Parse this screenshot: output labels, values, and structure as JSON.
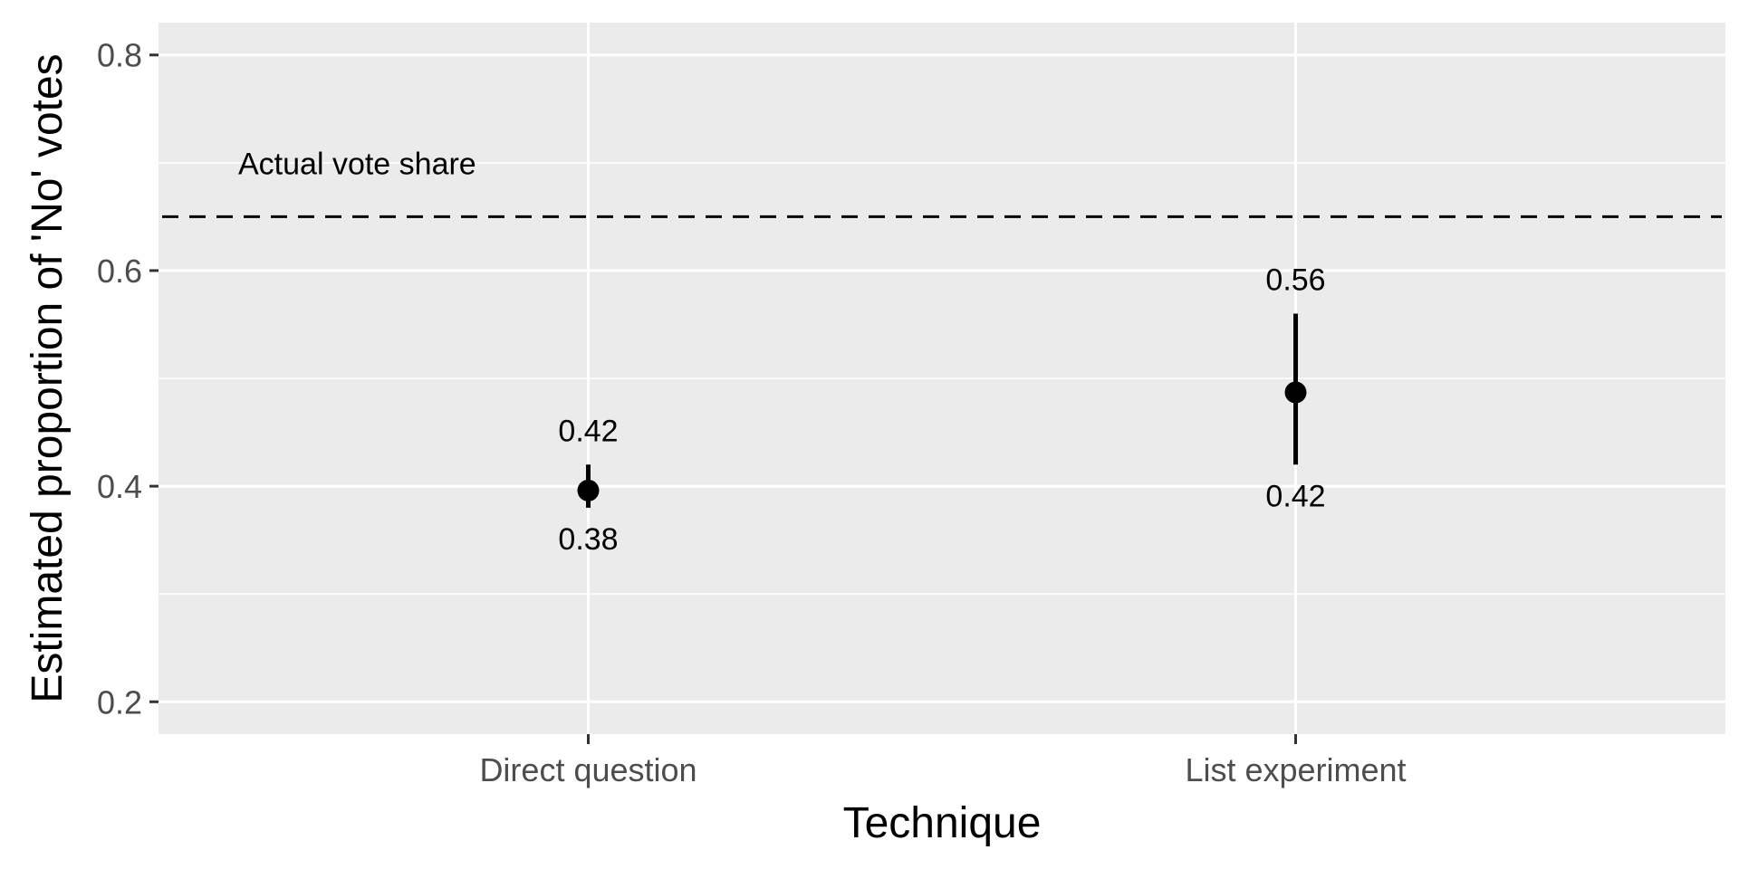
{
  "chart_data": {
    "type": "scatter",
    "title": "",
    "xlabel": "Technique",
    "ylabel": "Estimated proportion of 'No' votes",
    "categories": [
      "Direct question",
      "List experiment"
    ],
    "series": [
      {
        "values": [
          0.396,
          0.487
        ],
        "lower": [
          0.38,
          0.42
        ],
        "upper": [
          0.42,
          0.56
        ],
        "lower_labels": [
          "0.38",
          "0.42"
        ],
        "upper_labels": [
          "0.42",
          "0.56"
        ]
      }
    ],
    "ylim": [
      0.17,
      0.83
    ],
    "yticks": [
      0.2,
      0.4,
      0.6,
      0.8
    ],
    "ytick_labels": [
      "0.2",
      "0.4",
      "0.6",
      "0.8"
    ],
    "reference_line": {
      "value": 0.65,
      "label": "Actual vote share",
      "style": "dashed"
    },
    "grid": true,
    "legend": "none",
    "colors": {
      "panel": "#ebebeb",
      "grid": "#ffffff",
      "marks": "#000000",
      "tick_text": "#4d4d4d"
    }
  }
}
